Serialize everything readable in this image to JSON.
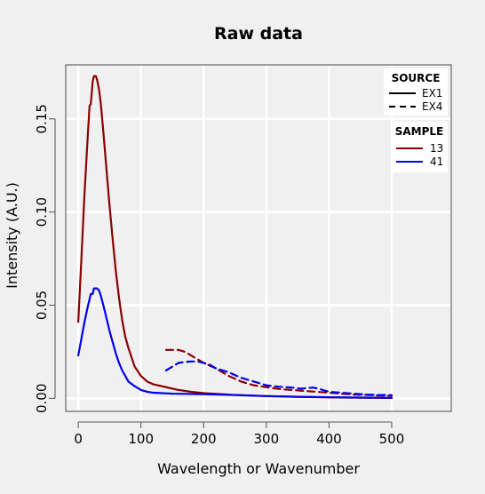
{
  "chart_data": {
    "type": "line",
    "title": "Raw data",
    "xlabel": "Wavelength or Wavenumber",
    "ylabel": "Intensity (A.U.)",
    "xlim": [
      -20,
      595
    ],
    "ylim": [
      -0.007,
      0.179
    ],
    "xticks": [
      0,
      100,
      200,
      300,
      400,
      500
    ],
    "yticks": [
      0.0,
      0.05,
      0.1,
      0.15
    ],
    "ytick_labels": [
      "0.00",
      "0.05",
      "0.10",
      "0.15"
    ],
    "grid": true,
    "legend": [
      {
        "title": "SOURCE",
        "position": "top-right",
        "entries": [
          {
            "label": "EX1",
            "style": "solid"
          },
          {
            "label": "EX4",
            "style": "dashed"
          }
        ]
      },
      {
        "title": "SAMPLE",
        "position": "top-right",
        "entries": [
          {
            "label": "13",
            "color": "#8b0000"
          },
          {
            "label": "41",
            "color": "#0000ee"
          }
        ]
      }
    ],
    "series": [
      {
        "source": "EX1",
        "sample": "13",
        "color": "#8b0000",
        "style": "solid",
        "points": [
          [
            0,
            0.041
          ],
          [
            5,
            0.075
          ],
          [
            10,
            0.11
          ],
          [
            15,
            0.14
          ],
          [
            18,
            0.157
          ],
          [
            20,
            0.158
          ],
          [
            23,
            0.17
          ],
          [
            25,
            0.173
          ],
          [
            28,
            0.173
          ],
          [
            30,
            0.171
          ],
          [
            33,
            0.166
          ],
          [
            36,
            0.158
          ],
          [
            40,
            0.143
          ],
          [
            45,
            0.123
          ],
          [
            50,
            0.103
          ],
          [
            55,
            0.085
          ],
          [
            60,
            0.068
          ],
          [
            65,
            0.054
          ],
          [
            70,
            0.042
          ],
          [
            75,
            0.033
          ],
          [
            80,
            0.027
          ],
          [
            85,
            0.022
          ],
          [
            90,
            0.017
          ],
          [
            100,
            0.012
          ],
          [
            110,
            0.009
          ],
          [
            120,
            0.0075
          ],
          [
            140,
            0.006
          ],
          [
            160,
            0.0045
          ],
          [
            180,
            0.0035
          ],
          [
            200,
            0.0028
          ],
          [
            250,
            0.0018
          ],
          [
            300,
            0.0012
          ],
          [
            350,
            0.0008
          ],
          [
            400,
            0.0005
          ],
          [
            450,
            0.0003
          ],
          [
            500,
            0.0002
          ]
        ]
      },
      {
        "source": "EX1",
        "sample": "41",
        "color": "#0000ee",
        "style": "solid",
        "points": [
          [
            0,
            0.023
          ],
          [
            5,
            0.032
          ],
          [
            10,
            0.041
          ],
          [
            15,
            0.049
          ],
          [
            20,
            0.056
          ],
          [
            23,
            0.056
          ],
          [
            25,
            0.059
          ],
          [
            30,
            0.059
          ],
          [
            33,
            0.058
          ],
          [
            36,
            0.055
          ],
          [
            40,
            0.05
          ],
          [
            45,
            0.043
          ],
          [
            50,
            0.036
          ],
          [
            55,
            0.03
          ],
          [
            60,
            0.024
          ],
          [
            65,
            0.019
          ],
          [
            70,
            0.015
          ],
          [
            75,
            0.012
          ],
          [
            80,
            0.009
          ],
          [
            90,
            0.0065
          ],
          [
            100,
            0.0045
          ],
          [
            110,
            0.0035
          ],
          [
            120,
            0.003
          ],
          [
            150,
            0.0025
          ],
          [
            200,
            0.0022
          ],
          [
            250,
            0.0018
          ],
          [
            300,
            0.0012
          ],
          [
            350,
            0.0008
          ],
          [
            400,
            0.0006
          ],
          [
            450,
            0.0004
          ],
          [
            500,
            0.0003
          ]
        ]
      },
      {
        "source": "EX4",
        "sample": "13",
        "color": "#8b0000",
        "style": "dashed",
        "points": [
          [
            140,
            0.026
          ],
          [
            150,
            0.026
          ],
          [
            160,
            0.026
          ],
          [
            170,
            0.025
          ],
          [
            180,
            0.023
          ],
          [
            200,
            0.019
          ],
          [
            220,
            0.016
          ],
          [
            240,
            0.012
          ],
          [
            260,
            0.009
          ],
          [
            280,
            0.007
          ],
          [
            300,
            0.006
          ],
          [
            320,
            0.005
          ],
          [
            340,
            0.0045
          ],
          [
            360,
            0.004
          ],
          [
            380,
            0.0035
          ],
          [
            400,
            0.003
          ],
          [
            420,
            0.0025
          ],
          [
            440,
            0.002
          ],
          [
            460,
            0.0018
          ],
          [
            480,
            0.0015
          ],
          [
            500,
            0.0014
          ]
        ]
      },
      {
        "source": "EX4",
        "sample": "41",
        "color": "#0000ee",
        "style": "dashed",
        "points": [
          [
            140,
            0.015
          ],
          [
            150,
            0.017
          ],
          [
            160,
            0.019
          ],
          [
            170,
            0.0195
          ],
          [
            180,
            0.0198
          ],
          [
            190,
            0.0198
          ],
          [
            200,
            0.019
          ],
          [
            210,
            0.018
          ],
          [
            220,
            0.016
          ],
          [
            240,
            0.014
          ],
          [
            260,
            0.011
          ],
          [
            280,
            0.009
          ],
          [
            300,
            0.007
          ],
          [
            320,
            0.0062
          ],
          [
            340,
            0.0058
          ],
          [
            355,
            0.0052
          ],
          [
            365,
            0.0055
          ],
          [
            375,
            0.0058
          ],
          [
            385,
            0.005
          ],
          [
            400,
            0.0035
          ],
          [
            420,
            0.003
          ],
          [
            440,
            0.0025
          ],
          [
            460,
            0.002
          ],
          [
            480,
            0.0018
          ],
          [
            500,
            0.0017
          ]
        ]
      }
    ]
  }
}
